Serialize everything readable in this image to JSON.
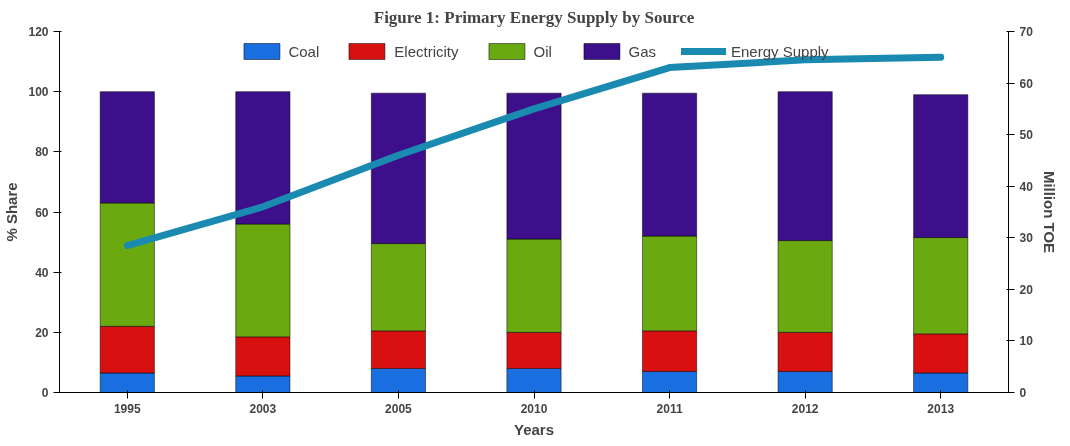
{
  "chart_data": {
    "type": "bar",
    "stacked": true,
    "title": "Figure 1: Primary Energy Supply by Source",
    "xlabel": "Years",
    "ylabel": "% Share",
    "y2label": "Million TOE",
    "categories": [
      "1995",
      "2003",
      "2005",
      "2010",
      "2011",
      "2012",
      "2013"
    ],
    "series": [
      {
        "name": "Coal",
        "color": "#1a6fe0",
        "values": [
          6.5,
          5.5,
          8,
          8,
          7,
          7,
          6.5
        ]
      },
      {
        "name": "Electricity",
        "color": "#d81010",
        "values": [
          15.5,
          13,
          12.5,
          12,
          13.5,
          13,
          13
        ]
      },
      {
        "name": "Oil",
        "color": "#6aaa10",
        "values": [
          41,
          37.5,
          29,
          31,
          31.5,
          30.5,
          32
        ]
      },
      {
        "name": "Gas",
        "color": "#3d0f8a",
        "values": [
          37,
          44,
          50,
          48.5,
          47.5,
          49.5,
          47.5
        ]
      },
      {
        "name": "Energy Supply",
        "type": "line",
        "axis": "y2",
        "color": "#1a8ab0",
        "values": [
          28.5,
          36,
          46,
          55,
          63,
          64.5,
          65
        ]
      }
    ],
    "ylim": [
      0,
      120
    ],
    "yticks": [
      0,
      20,
      40,
      60,
      80,
      100,
      120
    ],
    "y2lim": [
      0,
      70
    ],
    "y2ticks": [
      0,
      10,
      20,
      30,
      40,
      50,
      60,
      70
    ],
    "grid": false,
    "legend": "top",
    "marker": "none",
    "line_style": "solid"
  }
}
